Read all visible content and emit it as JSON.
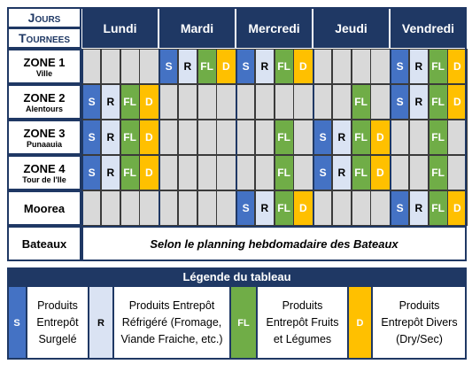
{
  "header": {
    "corner_top": "Jours",
    "corner_bottom": "Tournees",
    "days": [
      "Lundi",
      "Mardi",
      "Mercredi",
      "Jeudi",
      "Vendredi"
    ]
  },
  "rows": [
    {
      "zone": "ZONE 1",
      "sub": "Ville",
      "cells": [
        null,
        null,
        null,
        null,
        "S",
        "R",
        "FL",
        "D",
        "S",
        "R",
        "FL",
        "D",
        null,
        null,
        null,
        null,
        "S",
        "R",
        "FL",
        "D"
      ]
    },
    {
      "zone": "ZONE 2",
      "sub": "Alentours",
      "cells": [
        "S",
        "R",
        "FL",
        "D",
        null,
        null,
        null,
        null,
        null,
        null,
        null,
        null,
        null,
        null,
        "FL",
        null,
        "S",
        "R",
        "FL",
        "D"
      ]
    },
    {
      "zone": "ZONE 3",
      "sub": "Punaauia",
      "cells": [
        "S",
        "R",
        "FL",
        "D",
        null,
        null,
        null,
        null,
        null,
        null,
        "FL",
        null,
        "S",
        "R",
        "FL",
        "D",
        null,
        null,
        "FL",
        null
      ]
    },
    {
      "zone": "ZONE 4",
      "sub": "Tour de l'Ile",
      "cells": [
        "S",
        "R",
        "FL",
        "D",
        null,
        null,
        null,
        null,
        null,
        null,
        "FL",
        null,
        "S",
        "R",
        "FL",
        "D",
        null,
        null,
        "FL",
        null
      ]
    },
    {
      "zone": "Moorea",
      "cells": [
        null,
        null,
        null,
        null,
        null,
        null,
        null,
        null,
        "S",
        "R",
        "FL",
        "D",
        null,
        null,
        null,
        null,
        "S",
        "R",
        "FL",
        "D"
      ]
    },
    {
      "zone": "Bateaux",
      "note": "Selon le planning hebdomadaire des Bateaux"
    }
  ],
  "legend": {
    "title": "Légende du tableau",
    "items": [
      {
        "code": "S",
        "color": "#4472c4",
        "text_color": "#ffffff",
        "label": "Produits Entrepôt Surgelé"
      },
      {
        "code": "R",
        "color": "#dae3f3",
        "text_color": "#000000",
        "label": "Produits Entrepôt Réfrigéré (Fromage, Viande Fraiche, etc.)"
      },
      {
        "code": "FL",
        "color": "#70ad47",
        "text_color": "#ffffff",
        "label": "Produits Entrepôt Fruits et Légumes"
      },
      {
        "code": "D",
        "color": "#ffc000",
        "text_color": "#ffffff",
        "label": "Produits Entrepôt Divers (Dry/Sec)"
      }
    ]
  }
}
